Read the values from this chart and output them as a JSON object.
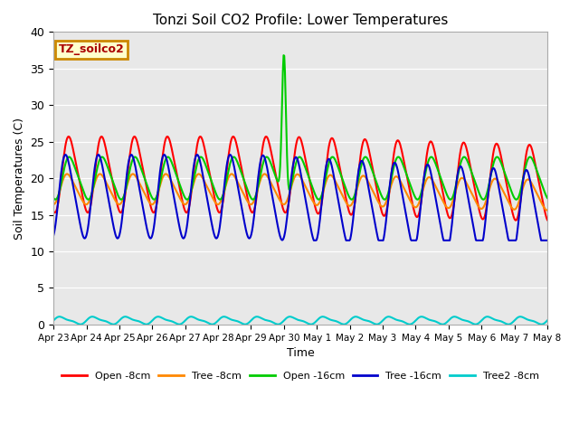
{
  "title": "Tonzi Soil CO2 Profile: Lower Temperatures",
  "xlabel": "Time",
  "ylabel": "Soil Temperatures (C)",
  "ylim": [
    0,
    40
  ],
  "yticks": [
    0,
    5,
    10,
    15,
    20,
    25,
    30,
    35,
    40
  ],
  "bg_color": "#e8e8e8",
  "annotation_text": "TZ_soilco2",
  "annotation_bg": "#ffffcc",
  "annotation_border": "#cc8800",
  "series_names": [
    "Open -8cm",
    "Tree -8cm",
    "Open -16cm",
    "Tree -16cm",
    "Tree2 -8cm"
  ],
  "series_colors": [
    "#ff0000",
    "#ff8800",
    "#00cc00",
    "#0000cc",
    "#00cccc"
  ],
  "series_lw": [
    1.5,
    1.5,
    1.5,
    1.5,
    1.5
  ],
  "x_tick_labels": [
    "Apr 23",
    "Apr 24",
    "Apr 25",
    "Apr 26",
    "Apr 27",
    "Apr 28",
    "Apr 29",
    "Apr 30",
    "May 1",
    "May 2",
    "May 3",
    "May 4",
    "May 5",
    "May 6",
    "May 7",
    "May 8"
  ],
  "n_days": 15,
  "points_per_day": 48,
  "spike_day": 7.0,
  "spike_value": 37.0
}
